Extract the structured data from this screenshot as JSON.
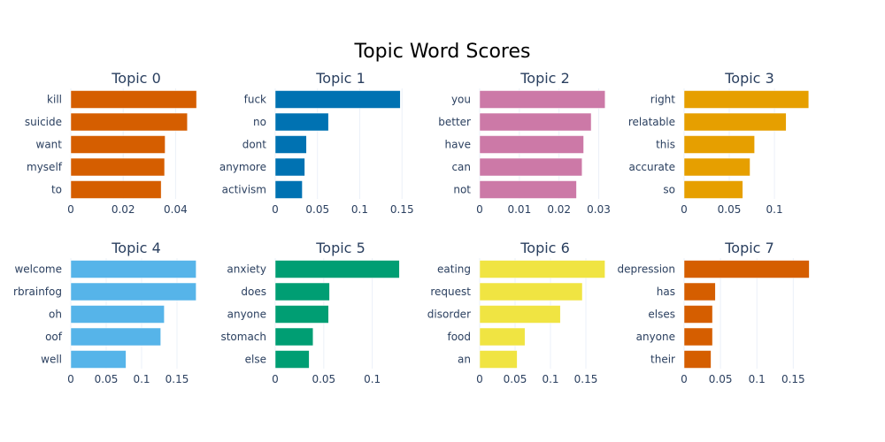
{
  "chart_data": {
    "title": "Topic Word Scores",
    "type": "bar",
    "orientation": "horizontal",
    "grid": true,
    "panels": [
      {
        "title": "Topic 0",
        "color": "#D55E00",
        "categories": [
          "kill",
          "suicide",
          "want",
          "myself",
          "to"
        ],
        "values": [
          0.048,
          0.0445,
          0.036,
          0.0358,
          0.0345
        ],
        "xlim": [
          0,
          0.05
        ],
        "xticks": [
          0,
          0.02,
          0.04
        ],
        "xtick_labels": [
          "0",
          "0.02",
          "0.04"
        ]
      },
      {
        "title": "Topic 1",
        "color": "#0072B2",
        "categories": [
          "fuck",
          "no",
          "dont",
          "anymore",
          "activism"
        ],
        "values": [
          0.148,
          0.063,
          0.037,
          0.035,
          0.032
        ],
        "xlim": [
          0,
          0.155
        ],
        "xticks": [
          0,
          0.05,
          0.1,
          0.15
        ],
        "xtick_labels": [
          "0",
          "0.05",
          "0.1",
          "0.15"
        ]
      },
      {
        "title": "Topic 2",
        "color": "#CC79A7",
        "categories": [
          "you",
          "better",
          "have",
          "can",
          "not"
        ],
        "values": [
          0.0316,
          0.0281,
          0.0262,
          0.0258,
          0.0244
        ],
        "xlim": [
          0,
          0.033
        ],
        "xticks": [
          0,
          0.01,
          0.02,
          0.03
        ],
        "xtick_labels": [
          "0",
          "0.01",
          "0.02",
          "0.03"
        ]
      },
      {
        "title": "Topic 3",
        "color": "#E69F00",
        "categories": [
          "right",
          "relatable",
          "this",
          "accurate",
          "so"
        ],
        "values": [
          0.138,
          0.113,
          0.078,
          0.073,
          0.065
        ],
        "xlim": [
          0,
          0.145
        ],
        "xticks": [
          0,
          0.05,
          0.1
        ],
        "xtick_labels": [
          "0",
          "0.05",
          "0.1"
        ]
      },
      {
        "title": "Topic 4",
        "color": "#56B4E9",
        "categories": [
          "welcome",
          "rbrainfog",
          "oh",
          "oof",
          "well"
        ],
        "values": [
          0.177,
          0.177,
          0.132,
          0.127,
          0.078
        ],
        "xlim": [
          0,
          0.185
        ],
        "xticks": [
          0,
          0.05,
          0.1,
          0.15
        ],
        "xtick_labels": [
          "0",
          "0.05",
          "0.1",
          "0.15"
        ]
      },
      {
        "title": "Topic 5",
        "color": "#009E73",
        "categories": [
          "anxiety",
          "does",
          "anyone",
          "stomach",
          "else"
        ],
        "values": [
          0.128,
          0.056,
          0.055,
          0.039,
          0.035
        ],
        "xlim": [
          0,
          0.135
        ],
        "xticks": [
          0,
          0.05,
          0.1
        ],
        "xtick_labels": [
          "0",
          "0.05",
          "0.1"
        ]
      },
      {
        "title": "Topic 6",
        "color": "#F0E442",
        "categories": [
          "eating",
          "request",
          "disorder",
          "food",
          "an"
        ],
        "values": [
          0.177,
          0.145,
          0.114,
          0.064,
          0.053
        ],
        "xlim": [
          0,
          0.185
        ],
        "xticks": [
          0,
          0.05,
          0.1,
          0.15
        ],
        "xtick_labels": [
          "0",
          "0.05",
          "0.1",
          "0.15"
        ]
      },
      {
        "title": "Topic 7",
        "color": "#D55E00",
        "categories": [
          "depression",
          "has",
          "elses",
          "anyone",
          "their"
        ],
        "values": [
          0.172,
          0.043,
          0.039,
          0.039,
          0.037
        ],
        "xlim": [
          0,
          0.18
        ],
        "xticks": [
          0,
          0.05,
          0.1,
          0.15
        ],
        "xtick_labels": [
          "0",
          "0.05",
          "0.1",
          "0.15"
        ]
      }
    ]
  }
}
